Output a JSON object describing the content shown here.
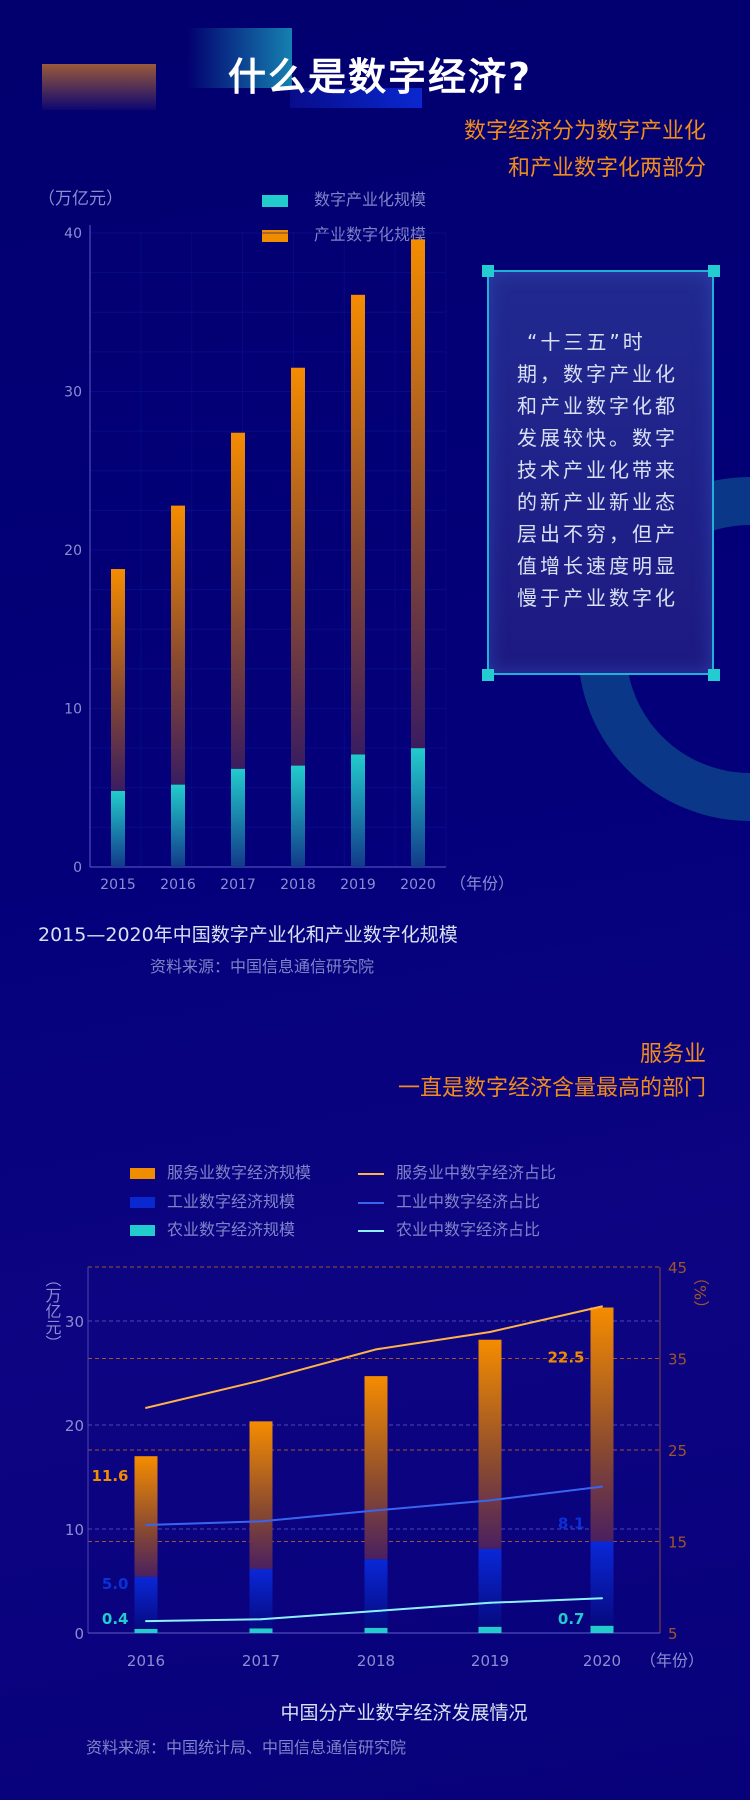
{
  "header": {
    "title": "什么是数字经济?"
  },
  "intro": {
    "line1": "数字经济分为数字产业化",
    "line2": "和产业数字化两部分"
  },
  "textbox": {
    "lines": [
      "“十三五”时",
      "期，数字产业化",
      "和产业数字化都",
      "发展较快。数字",
      "技术产业化带来",
      "的新产业新业态",
      "层出不穷，但产",
      "值增长速度明显",
      "慢于产业数字化"
    ]
  },
  "section2": {
    "line1": "服务业",
    "line2": "一直是数字经济含量最高的部门"
  },
  "colors": {
    "background": "#02006e",
    "accent_orange": "#f08c1c",
    "teal": "#22cccc",
    "blue": "#0a28d0",
    "axis_text": "#8a8ed0"
  },
  "chart_data": [
    {
      "type": "bar",
      "stacked": true,
      "title": "2015—2020年中国数字产业化和产业数字化规模",
      "source": "资料来源：中国信息通信研究院",
      "ylabel": "（万亿元）",
      "xlabel": "（年份）",
      "ylim": [
        0,
        40
      ],
      "yticks": [
        "0",
        "10",
        "20",
        "30",
        "40"
      ],
      "grid": true,
      "legend_position": "top",
      "categories": [
        "2015",
        "2016",
        "2017",
        "2018",
        "2019",
        "2020"
      ],
      "series": [
        {
          "name": "数字产业化规模",
          "color": "#22cccc",
          "values": [
            4.8,
            5.2,
            6.2,
            6.4,
            7.1,
            7.5
          ]
        },
        {
          "name": "产业数字化规模",
          "color": "#f08c00",
          "values": [
            14.0,
            17.6,
            21.2,
            25.1,
            29.0,
            32.1
          ]
        }
      ]
    },
    {
      "type": "bar+line",
      "stacked": true,
      "title": "中国分产业数字经济发展情况",
      "source": "资料来源：中国统计局、中国信息通信研究院",
      "ylabel": "（万亿元）",
      "y2label": "（%）",
      "xlabel": "（年份）",
      "ylim": [
        0,
        35
      ],
      "yticks": [
        "0",
        "10",
        "20",
        "30"
      ],
      "y2lim": [
        5,
        45
      ],
      "y2ticks": [
        "5",
        "15",
        "25",
        "35",
        "45"
      ],
      "grid": true,
      "legend_position": "top",
      "categories": [
        "2016",
        "2017",
        "2018",
        "2019",
        "2020"
      ],
      "bars": [
        {
          "name": "农业数字经济规模",
          "color": "#22cccc",
          "values": [
            0.4,
            0.45,
            0.5,
            0.6,
            0.7
          ],
          "labels": [
            "0.4",
            "",
            "",
            "",
            "0.7"
          ]
        },
        {
          "name": "工业数字经济规模",
          "color": "#0a28d0",
          "values": [
            5.0,
            5.7,
            6.6,
            7.5,
            8.1
          ],
          "labels": [
            "5.0",
            "",
            "",
            "",
            "8.1"
          ]
        },
        {
          "name": "服务业数字经济规模",
          "color": "#f08c00",
          "values": [
            11.6,
            14.2,
            17.6,
            20.1,
            22.5
          ],
          "labels": [
            "11.6",
            "",
            "",
            "",
            "22.5"
          ]
        }
      ],
      "lines": [
        {
          "name": "服务业中数字经济占比",
          "color": "#ffb24a",
          "values": [
            29.6,
            32.6,
            36.0,
            37.9,
            40.7
          ]
        },
        {
          "name": "工业中数字经济占比",
          "color": "#3a64f0",
          "values": [
            16.8,
            17.2,
            18.4,
            19.5,
            21.0
          ]
        },
        {
          "name": "农业中数字经济占比",
          "color": "#8ef0ff",
          "values": [
            6.3,
            6.5,
            7.4,
            8.3,
            8.8
          ]
        }
      ]
    }
  ]
}
